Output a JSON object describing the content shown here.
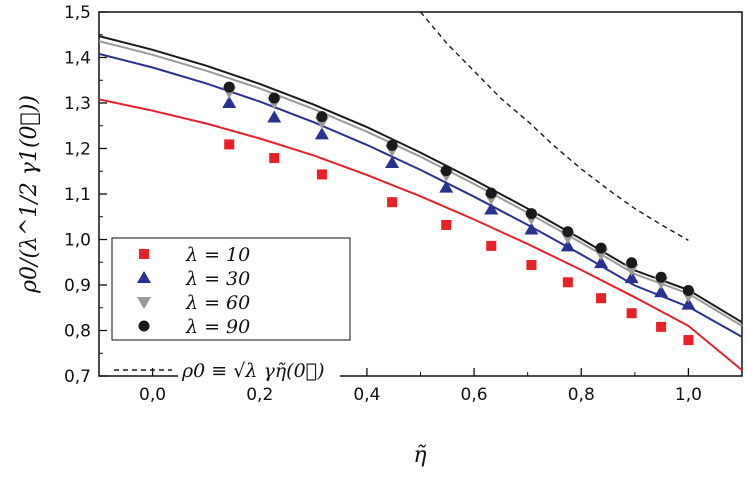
{
  "chart_data": {
    "type": "scatter",
    "title": "",
    "xlabel": "η̃",
    "ylabel": "ρ0/(λ^1/2 γ1(0⃗))",
    "xlim": [
      -0.1,
      1.1
    ],
    "ylim": [
      0.7,
      1.5
    ],
    "xticks": [
      0.0,
      0.2,
      0.4,
      0.6,
      0.8,
      1.0
    ],
    "xtick_labels": [
      "0,0",
      "0,2",
      "0,4",
      "0,6",
      "0,8",
      "1,0"
    ],
    "yticks": [
      0.7,
      0.8,
      0.9,
      1.0,
      1.1,
      1.2,
      1.3,
      1.4,
      1.5
    ],
    "ytick_labels": [
      "0,7",
      "0,8",
      "0,9",
      "1,0",
      "1,1",
      "1,2",
      "1,3",
      "1,4",
      "1,5"
    ],
    "grid": false,
    "legend_position": "bottom-left",
    "series": [
      {
        "name": "λ = 10",
        "marker": "square",
        "color": "#e8202a",
        "x": [
          0.143,
          0.227,
          0.316,
          0.447,
          0.548,
          0.632,
          0.707,
          0.775,
          0.837,
          0.894,
          0.949,
          1.0
        ],
        "y": [
          1.209,
          1.179,
          1.143,
          1.082,
          1.032,
          0.986,
          0.944,
          0.906,
          0.871,
          0.838,
          0.808,
          0.779
        ],
        "fit_x": [
          -0.1,
          0.0,
          0.1,
          0.2,
          0.3,
          0.4,
          0.5,
          0.6,
          0.7,
          0.8,
          0.9,
          1.0,
          1.1
        ],
        "fit_y": [
          1.308,
          1.283,
          1.255,
          1.222,
          1.185,
          1.142,
          1.095,
          1.044,
          0.99,
          0.933,
          0.873,
          0.81,
          0.713
        ]
      },
      {
        "name": "λ = 30",
        "marker": "triangle-up",
        "color": "#2a3290",
        "x": [
          0.143,
          0.227,
          0.316,
          0.447,
          0.548,
          0.632,
          0.707,
          0.775,
          0.837,
          0.894,
          0.949,
          1.0
        ],
        "y": [
          1.3,
          1.268,
          1.231,
          1.168,
          1.114,
          1.066,
          1.022,
          0.985,
          0.948,
          0.915,
          0.884,
          0.857
        ],
        "fit_x": [
          -0.1,
          0.0,
          0.1,
          0.2,
          0.3,
          0.4,
          0.5,
          0.6,
          0.7,
          0.8,
          0.9,
          1.0,
          1.1
        ],
        "fit_y": [
          1.408,
          1.378,
          1.343,
          1.303,
          1.258,
          1.208,
          1.153,
          1.094,
          1.032,
          0.967,
          0.899,
          0.852,
          0.786
        ]
      },
      {
        "name": "λ = 60",
        "marker": "triangle-down",
        "color": "#9a9a9a",
        "x": [
          0.143,
          0.227,
          0.316,
          0.447,
          0.548,
          0.632,
          0.707,
          0.775,
          0.837,
          0.894,
          0.949,
          1.0
        ],
        "y": [
          1.325,
          1.301,
          1.258,
          1.197,
          1.142,
          1.091,
          1.047,
          1.005,
          0.969,
          0.935,
          0.906,
          0.877
        ],
        "fit_x": [
          -0.1,
          0.0,
          0.1,
          0.2,
          0.3,
          0.4,
          0.5,
          0.6,
          0.7,
          0.8,
          0.9,
          1.0,
          1.1
        ],
        "fit_y": [
          1.436,
          1.406,
          1.371,
          1.332,
          1.287,
          1.237,
          1.182,
          1.122,
          1.059,
          0.993,
          0.924,
          0.881,
          0.81
        ]
      },
      {
        "name": "λ = 90",
        "marker": "circle",
        "color": "#1a1a1a",
        "x": [
          0.143,
          0.227,
          0.316,
          0.447,
          0.548,
          0.632,
          0.707,
          0.775,
          0.837,
          0.894,
          0.949,
          1.0
        ],
        "y": [
          1.335,
          1.311,
          1.27,
          1.207,
          1.151,
          1.102,
          1.057,
          1.017,
          0.981,
          0.949,
          0.917,
          0.888
        ],
        "fit_x": [
          -0.1,
          0.0,
          0.1,
          0.2,
          0.3,
          0.4,
          0.5,
          0.6,
          0.7,
          0.8,
          0.9,
          1.0,
          1.1
        ],
        "fit_y": [
          1.447,
          1.417,
          1.382,
          1.342,
          1.297,
          1.247,
          1.191,
          1.131,
          1.068,
          1.001,
          0.932,
          0.889,
          0.818
        ]
      }
    ],
    "reference_curve": {
      "name": "ρ0 ≡ √λ γη̃(0⃗)",
      "style": "dashed",
      "color": "#1a1a1a",
      "x": [
        0.5,
        0.55,
        0.6,
        0.65,
        0.7,
        0.75,
        0.8,
        0.85,
        0.9,
        0.95,
        1.0
      ],
      "y": [
        1.5,
        1.43,
        1.37,
        1.31,
        1.26,
        1.205,
        1.155,
        1.11,
        1.068,
        1.032,
        0.998
      ]
    }
  }
}
